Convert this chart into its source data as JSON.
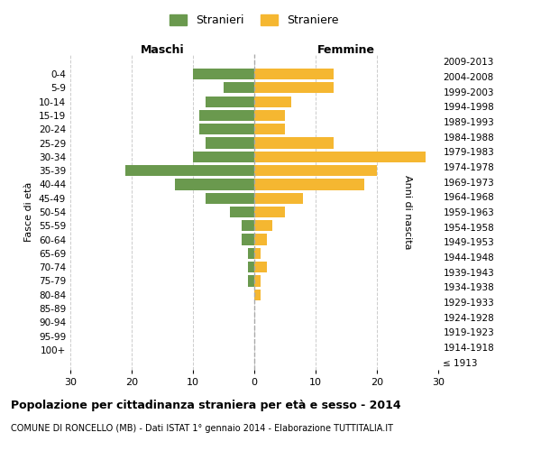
{
  "age_groups": [
    "100+",
    "95-99",
    "90-94",
    "85-89",
    "80-84",
    "75-79",
    "70-74",
    "65-69",
    "60-64",
    "55-59",
    "50-54",
    "45-49",
    "40-44",
    "35-39",
    "30-34",
    "25-29",
    "20-24",
    "15-19",
    "10-14",
    "5-9",
    "0-4"
  ],
  "birth_years": [
    "≤ 1913",
    "1914-1918",
    "1919-1923",
    "1924-1928",
    "1929-1933",
    "1934-1938",
    "1939-1943",
    "1944-1948",
    "1949-1953",
    "1954-1958",
    "1959-1963",
    "1964-1968",
    "1969-1973",
    "1974-1978",
    "1979-1983",
    "1984-1988",
    "1989-1993",
    "1994-1998",
    "1999-2003",
    "2004-2008",
    "2009-2013"
  ],
  "maschi": [
    0,
    0,
    0,
    0,
    0,
    1,
    1,
    1,
    2,
    2,
    4,
    8,
    13,
    21,
    10,
    8,
    9,
    9,
    8,
    5,
    10
  ],
  "femmine": [
    0,
    0,
    0,
    0,
    1,
    1,
    2,
    1,
    2,
    3,
    5,
    8,
    18,
    20,
    28,
    13,
    5,
    5,
    6,
    13,
    13
  ],
  "maschi_color": "#6a994e",
  "femmine_color": "#f5b731",
  "background_color": "#ffffff",
  "grid_color": "#cccccc",
  "title": "Popolazione per cittadinanza straniera per età e sesso - 2014",
  "subtitle": "COMUNE DI RONCELLO (MB) - Dati ISTAT 1° gennaio 2014 - Elaborazione TUTTITALIA.IT",
  "xlabel_left": "Maschi",
  "xlabel_right": "Femmine",
  "ylabel_left": "Fasce di età",
  "ylabel_right": "Anni di nascita",
  "legend_maschi": "Stranieri",
  "legend_femmine": "Straniere",
  "xlim": 30,
  "bar_height": 0.8
}
